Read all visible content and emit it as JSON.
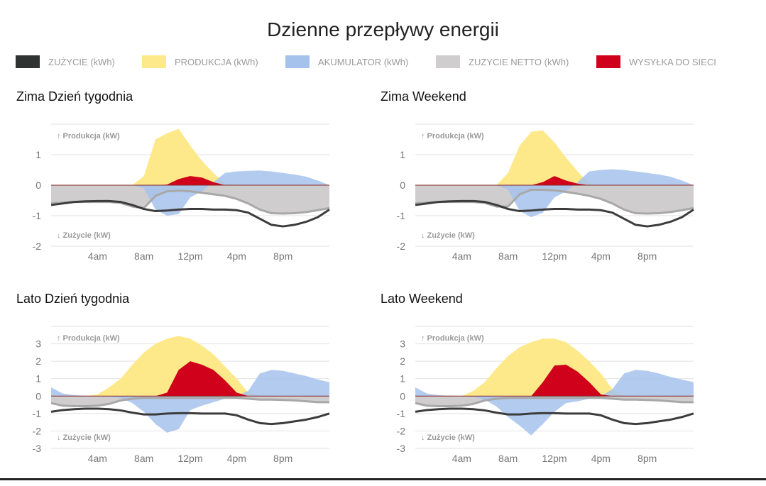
{
  "title": "Dzienne przepływy energii",
  "legend": [
    {
      "label": "ZUŻYCIE (kWh)",
      "color": "#2f3432"
    },
    {
      "label": "PRODUKCJA (kWh)",
      "color": "#fde98a"
    },
    {
      "label": "AKUMULATOR (kWh)",
      "color": "#a4c2ec"
    },
    {
      "label": "ZUZYCIE NETTO (kWh)",
      "color": "#cfcdcd"
    },
    {
      "label": "WYSYŁKA DO SIECI",
      "color": "#d0021b"
    }
  ],
  "chart_data": [
    {
      "type": "area",
      "title": "Zima Dzień tygodnia",
      "up_label": "↑ Produkcja (kW)",
      "down_label": "↓ Zużycie (kW)",
      "ylim": [
        -2,
        2
      ],
      "yticks": [
        1,
        0,
        -1,
        -2
      ],
      "x_hours": [
        0,
        1,
        2,
        3,
        4,
        5,
        6,
        7,
        8,
        9,
        10,
        11,
        12,
        13,
        14,
        15,
        16,
        17,
        18,
        19,
        20,
        21,
        22,
        23,
        24
      ],
      "xticks": [
        "4am",
        "8am",
        "12pm",
        "4pm",
        "8pm"
      ],
      "series": {
        "produkcja": [
          0,
          0,
          0,
          0,
          0,
          0,
          0,
          0,
          0.3,
          1.5,
          1.7,
          1.85,
          1.3,
          0.8,
          0.4,
          0.05,
          0,
          0,
          0,
          0,
          0,
          0,
          0,
          0,
          0
        ],
        "akumulator": [
          0,
          0,
          0,
          0,
          0,
          0,
          0,
          0,
          -0.1,
          -0.8,
          -1.0,
          -0.95,
          -0.4,
          -0.2,
          0.1,
          0.4,
          0.45,
          0.47,
          0.48,
          0.45,
          0.4,
          0.35,
          0.28,
          0.15,
          0
        ],
        "zuzycie_netto": [
          -0.6,
          -0.57,
          -0.55,
          -0.55,
          -0.55,
          -0.55,
          -0.58,
          -0.7,
          -0.75,
          -0.35,
          -0.2,
          -0.18,
          -0.2,
          -0.25,
          -0.3,
          -0.35,
          -0.45,
          -0.6,
          -0.8,
          -0.92,
          -0.93,
          -0.92,
          -0.88,
          -0.82,
          -0.75
        ],
        "wysylka": [
          0,
          0,
          0,
          0,
          0,
          0,
          0,
          0,
          0,
          0,
          0.02,
          0.2,
          0.3,
          0.25,
          0.1,
          0,
          0,
          0,
          0,
          0,
          0,
          0,
          0,
          0,
          0
        ],
        "zuzycie": [
          -0.65,
          -0.6,
          -0.55,
          -0.53,
          -0.52,
          -0.52,
          -0.55,
          -0.65,
          -0.78,
          -0.85,
          -0.83,
          -0.8,
          -0.78,
          -0.78,
          -0.8,
          -0.8,
          -0.82,
          -0.9,
          -1.1,
          -1.3,
          -1.35,
          -1.3,
          -1.2,
          -1.05,
          -0.8
        ]
      }
    },
    {
      "type": "area",
      "title": "Zima Weekend",
      "up_label": "↑ Produkcja (kW)",
      "down_label": "↓ Zużycie (kW)",
      "ylim": [
        -2,
        2
      ],
      "yticks": [
        1,
        0,
        -1,
        -2
      ],
      "x_hours": [
        0,
        1,
        2,
        3,
        4,
        5,
        6,
        7,
        8,
        9,
        10,
        11,
        12,
        13,
        14,
        15,
        16,
        17,
        18,
        19,
        20,
        21,
        22,
        23,
        24
      ],
      "xticks": [
        "4am",
        "8am",
        "12pm",
        "4pm",
        "8pm"
      ],
      "series": {
        "produkcja": [
          0,
          0,
          0,
          0,
          0,
          0,
          0,
          0,
          0.4,
          1.3,
          1.75,
          1.8,
          1.4,
          0.9,
          0.45,
          0.05,
          0,
          0,
          0,
          0,
          0,
          0,
          0,
          0,
          0
        ],
        "akumulator": [
          0,
          0,
          0,
          0,
          0,
          0,
          0,
          0,
          -0.15,
          -0.85,
          -1.05,
          -0.9,
          -0.4,
          -0.2,
          0.1,
          0.45,
          0.5,
          0.52,
          0.5,
          0.45,
          0.4,
          0.35,
          0.28,
          0.15,
          0
        ],
        "zuzycie_netto": [
          -0.6,
          -0.57,
          -0.55,
          -0.55,
          -0.55,
          -0.55,
          -0.58,
          -0.7,
          -0.7,
          -0.3,
          -0.15,
          -0.15,
          -0.17,
          -0.22,
          -0.28,
          -0.35,
          -0.45,
          -0.6,
          -0.8,
          -0.92,
          -0.93,
          -0.92,
          -0.88,
          -0.82,
          -0.75
        ],
        "wysylka": [
          0,
          0,
          0,
          0,
          0,
          0,
          0,
          0,
          0,
          0,
          0,
          0.1,
          0.3,
          0.15,
          0.05,
          0,
          0,
          0,
          0,
          0,
          0,
          0,
          0,
          0,
          0
        ],
        "zuzycie": [
          -0.65,
          -0.6,
          -0.55,
          -0.53,
          -0.52,
          -0.52,
          -0.55,
          -0.65,
          -0.78,
          -0.85,
          -0.83,
          -0.8,
          -0.78,
          -0.78,
          -0.8,
          -0.8,
          -0.82,
          -0.9,
          -1.1,
          -1.3,
          -1.35,
          -1.3,
          -1.2,
          -1.05,
          -0.8
        ]
      }
    },
    {
      "type": "area",
      "title": "Lato Dzień tygodnia",
      "up_label": "↑ Produkcja (kW)",
      "down_label": "↓ Zużycie (kW)",
      "ylim": [
        -3,
        4
      ],
      "yticks": [
        3,
        2,
        1,
        0,
        -1,
        -2,
        -3
      ],
      "x_hours": [
        0,
        1,
        2,
        3,
        4,
        5,
        6,
        7,
        8,
        9,
        10,
        11,
        12,
        13,
        14,
        15,
        16,
        17,
        18,
        19,
        20,
        21,
        22,
        23,
        24
      ],
      "xticks": [
        "4am",
        "8am",
        "12pm",
        "4pm",
        "8pm"
      ],
      "series": {
        "produkcja": [
          0,
          0,
          0,
          0,
          0.1,
          0.5,
          1.0,
          1.8,
          2.5,
          3.0,
          3.3,
          3.45,
          3.3,
          2.9,
          2.4,
          1.7,
          1.0,
          0.2,
          0,
          0,
          0,
          0,
          0,
          0,
          0
        ],
        "akumulator": [
          0.5,
          0.15,
          0.05,
          0.02,
          0,
          -0.05,
          -0.1,
          -0.4,
          -0.9,
          -1.6,
          -2.1,
          -1.9,
          -0.8,
          -0.55,
          -0.35,
          -0.15,
          0,
          0.3,
          1.3,
          1.5,
          1.45,
          1.3,
          1.15,
          0.95,
          0.8
        ],
        "zuzycie_netto": [
          -0.4,
          -0.55,
          -0.58,
          -0.58,
          -0.55,
          -0.45,
          -0.25,
          -0.15,
          -0.1,
          -0.1,
          -0.1,
          -0.1,
          -0.1,
          -0.1,
          -0.1,
          -0.1,
          -0.1,
          -0.15,
          -0.2,
          -0.2,
          -0.22,
          -0.25,
          -0.3,
          -0.35,
          -0.35
        ],
        "wysylka": [
          0,
          0,
          0,
          0,
          0,
          0,
          0,
          0,
          0,
          0,
          0.2,
          1.5,
          2.0,
          1.8,
          1.5,
          0.9,
          0.2,
          0,
          0,
          0,
          0,
          0,
          0,
          0,
          0
        ],
        "zuzycie": [
          -0.9,
          -0.8,
          -0.75,
          -0.72,
          -0.72,
          -0.75,
          -0.82,
          -0.95,
          -1.05,
          -1.05,
          -1.0,
          -0.98,
          -0.98,
          -1.0,
          -1.0,
          -1.0,
          -1.1,
          -1.35,
          -1.55,
          -1.6,
          -1.55,
          -1.45,
          -1.35,
          -1.2,
          -1.0
        ]
      }
    },
    {
      "type": "area",
      "title": "Lato Weekend",
      "up_label": "↑ Produkcja (kW)",
      "down_label": "↓ Zużycie (kW)",
      "ylim": [
        -3,
        4
      ],
      "yticks": [
        3,
        2,
        1,
        0,
        -1,
        -2,
        -3
      ],
      "x_hours": [
        0,
        1,
        2,
        3,
        4,
        5,
        6,
        7,
        8,
        9,
        10,
        11,
        12,
        13,
        14,
        15,
        16,
        17,
        18,
        19,
        20,
        21,
        22,
        23,
        24
      ],
      "xticks": [
        "4am",
        "8am",
        "12pm",
        "4pm",
        "8pm"
      ],
      "series": {
        "produkcja": [
          0,
          0,
          0,
          0,
          0,
          0.3,
          0.8,
          1.6,
          2.3,
          2.8,
          3.1,
          3.3,
          3.3,
          3.1,
          2.6,
          2.0,
          1.3,
          0.4,
          0,
          0,
          0,
          0,
          0,
          0,
          0
        ],
        "akumulator": [
          0.5,
          0.15,
          0.05,
          0.02,
          0,
          -0.05,
          -0.2,
          -0.6,
          -1.2,
          -1.7,
          -2.25,
          -1.6,
          -0.9,
          -0.4,
          -0.3,
          -0.15,
          0,
          0.4,
          1.3,
          1.5,
          1.45,
          1.3,
          1.1,
          0.95,
          0.8
        ],
        "zuzycie_netto": [
          -0.4,
          -0.55,
          -0.58,
          -0.58,
          -0.55,
          -0.45,
          -0.25,
          -0.15,
          -0.1,
          -0.1,
          -0.1,
          -0.1,
          -0.1,
          -0.1,
          -0.1,
          -0.1,
          -0.1,
          -0.15,
          -0.2,
          -0.2,
          -0.22,
          -0.25,
          -0.3,
          -0.35,
          -0.35
        ],
        "wysylka": [
          0,
          0,
          0,
          0,
          0,
          0,
          0,
          0,
          0,
          0,
          0,
          0.8,
          1.75,
          1.8,
          1.4,
          0.8,
          0.1,
          0,
          0,
          0,
          0,
          0,
          0,
          0,
          0
        ],
        "zuzycie": [
          -0.9,
          -0.8,
          -0.75,
          -0.72,
          -0.72,
          -0.75,
          -0.82,
          -0.95,
          -1.05,
          -1.05,
          -1.0,
          -0.98,
          -0.98,
          -1.0,
          -1.0,
          -1.0,
          -1.1,
          -1.35,
          -1.55,
          -1.6,
          -1.55,
          -1.45,
          -1.35,
          -1.2,
          -1.0
        ]
      }
    }
  ]
}
